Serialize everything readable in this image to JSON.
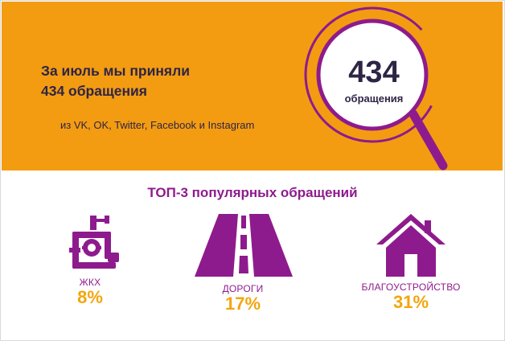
{
  "banner": {
    "headline_line1": "За июль мы приняли",
    "headline_line2": "434 обращения",
    "sources": "из VK, OK, Twitter, Facebook и Instagram",
    "highlight_number": "434",
    "highlight_caption": "обращения"
  },
  "top": {
    "title": "ТОП-3 популярных обращений",
    "categories": [
      {
        "label": "ЖКХ",
        "value": "8%",
        "icon": "plumbing-pipes-icon"
      },
      {
        "label": "ДОРОГИ",
        "value": "17%",
        "icon": "road-icon"
      },
      {
        "label": "БЛАГОУСТРОЙСТВО",
        "value": "31%",
        "icon": "house-icon"
      }
    ]
  },
  "colors": {
    "banner_bg": "#f39c12",
    "accent_purple": "#8e1b8d",
    "dark_text": "#2e2445",
    "value_orange": "#f2a60d"
  }
}
